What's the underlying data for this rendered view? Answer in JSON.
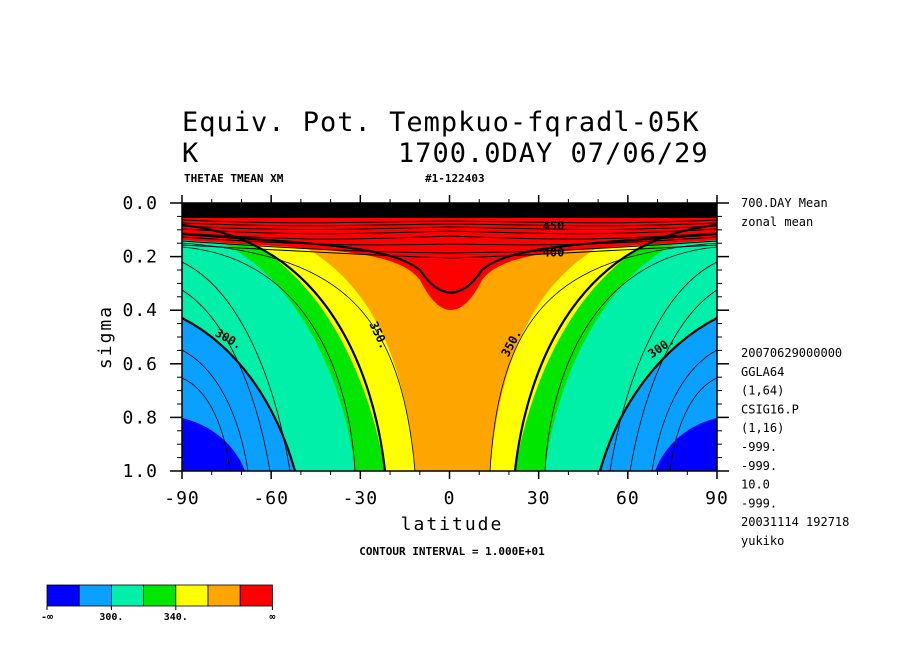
{
  "header": {
    "title_line1": "Equiv. Pot. Tempkuo-fqradl-05K",
    "title_unit": "K",
    "title_line2": "1700.0DAY 07/06/29",
    "var_label": "THETAE TMEAN XM",
    "run_id": "#1-122403"
  },
  "side_info": {
    "top": [
      "700.DAY Mean",
      "zonal mean"
    ],
    "lines": [
      "20070629000000",
      "GGLA64",
      "(1,64)",
      "CSIG16.P",
      "(1,16)",
      "-999.",
      "-999.",
      "10.0",
      "-999.",
      "20031114 192718",
      "yukiko"
    ]
  },
  "footer": {
    "contour_interval": "CONTOUR INTERVAL = 1.000E+01"
  },
  "chart_data": {
    "type": "heatmap",
    "title": "Equiv. Pot. Tempkuo-fqradl-05K",
    "xlabel": "latitude",
    "ylabel": "sigma",
    "xlim": [
      -90,
      90
    ],
    "ylim": [
      1.0,
      0.0
    ],
    "x_ticks": [
      "-90",
      "-60",
      "-30",
      "0",
      "30",
      "60",
      "90"
    ],
    "y_ticks": [
      "0.0",
      "0.2",
      "0.4",
      "0.6",
      "0.8",
      "1.0"
    ],
    "contour_interval": 10,
    "contour_labels": [
      {
        "text": "300.",
        "lat": -75,
        "sigma": 0.52
      },
      {
        "text": "350.",
        "lat": -25,
        "sigma": 0.5
      },
      {
        "text": "350.",
        "lat": 22,
        "sigma": 0.53
      },
      {
        "text": "300.",
        "lat": 72,
        "sigma": 0.55
      },
      {
        "text": "400",
        "lat": 35,
        "sigma": 0.2
      },
      {
        "text": "450",
        "lat": 35,
        "sigma": 0.1
      }
    ],
    "color_levels": [
      {
        "range": "-∞ to 300",
        "color": "#0000ff"
      },
      {
        "range": "300 to 320",
        "color": "#0aa0ff"
      },
      {
        "range": "320 to 340",
        "color": "#00f0aa"
      },
      {
        "range": "340 to 350",
        "color": "#00e600"
      },
      {
        "range": "350 to 360",
        "color": "#ffff00"
      },
      {
        "range": "360 to 380",
        "color": "#ffa500"
      },
      {
        "range": "380 to ∞",
        "color": "#ff0000"
      }
    ],
    "colorbar_labels": [
      "-∞",
      "300.",
      "340.",
      "∞"
    ]
  }
}
